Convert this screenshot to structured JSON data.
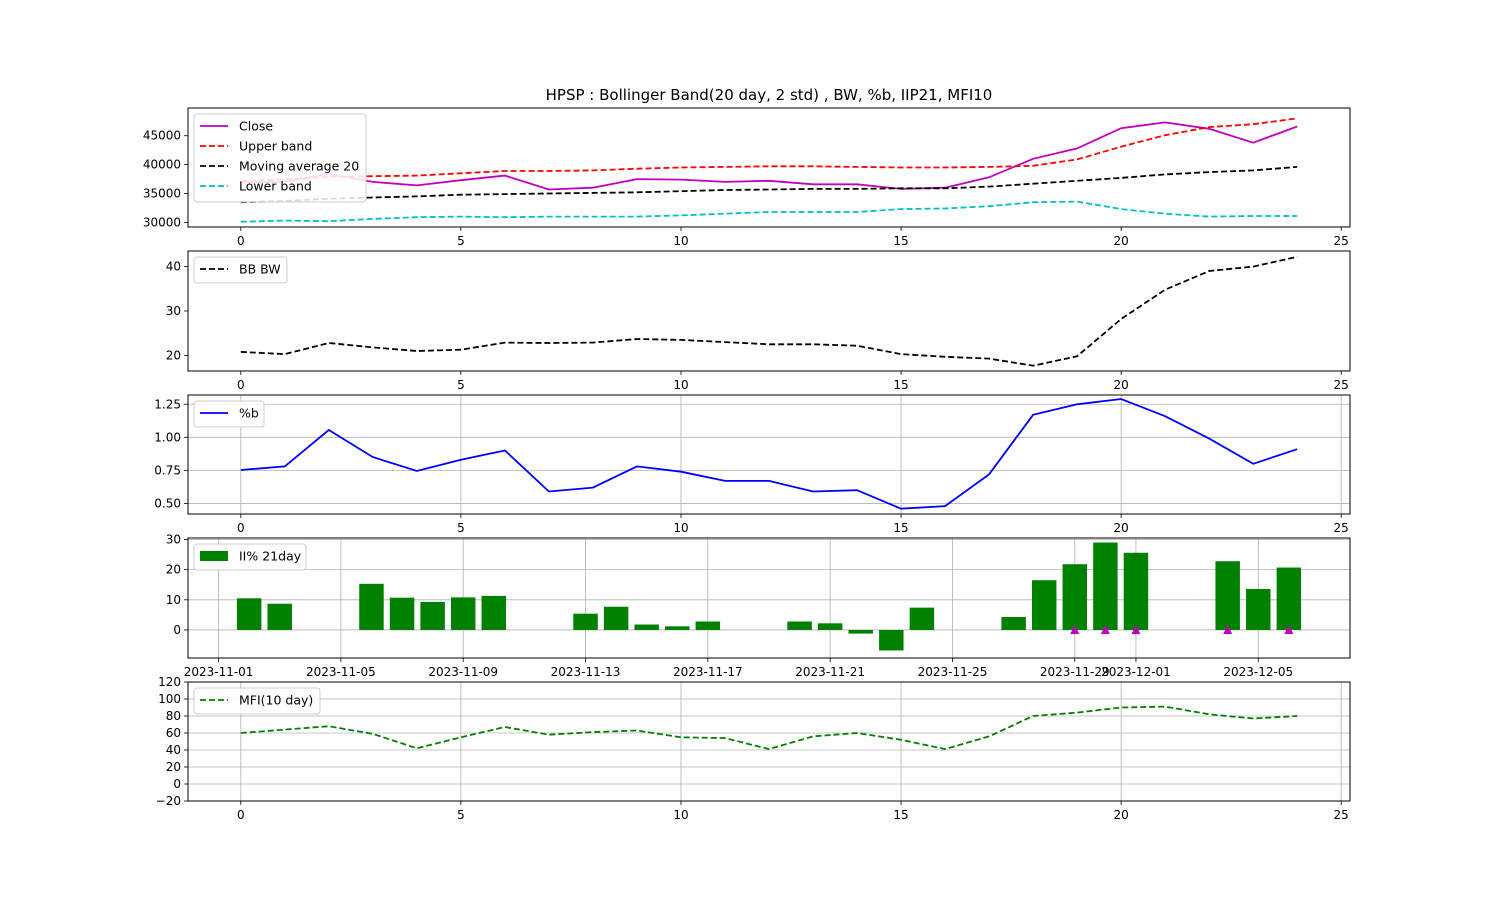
{
  "title": "HPSP : Bollinger Band(20 day, 2 std) , BW, %b, IIP21, MFI10",
  "chart_data": [
    {
      "type": "line",
      "panel": "bollinger",
      "x": [
        0,
        1,
        2,
        3,
        4,
        5,
        6,
        7,
        8,
        9,
        10,
        11,
        12,
        13,
        14,
        15,
        16,
        17,
        18,
        19,
        20,
        21,
        22,
        23,
        24
      ],
      "series": [
        {
          "name": "Close",
          "color": "#bf00bf",
          "style": "solid",
          "values": [
            36900,
            37000,
            38400,
            37000,
            36400,
            37300,
            38100,
            35700,
            36000,
            37500,
            37400,
            37000,
            37200,
            36600,
            36600,
            35800,
            36000,
            37800,
            41000,
            42800,
            46300,
            47300,
            46200,
            43800,
            46600
          ]
        },
        {
          "name": "Upper band",
          "color": "#ff0000",
          "style": "dashed",
          "values": [
            37200,
            37400,
            37900,
            38000,
            38100,
            38500,
            38900,
            38900,
            39000,
            39300,
            39500,
            39600,
            39700,
            39700,
            39600,
            39500,
            39500,
            39600,
            39800,
            40900,
            43100,
            45100,
            46500,
            47000,
            48000
          ]
        },
        {
          "name": "Moving average 20",
          "color": "#000000",
          "style": "dashed",
          "values": [
            33500,
            33700,
            34100,
            34300,
            34500,
            34800,
            34900,
            35000,
            35100,
            35200,
            35400,
            35600,
            35700,
            35800,
            35800,
            35900,
            35900,
            36200,
            36700,
            37200,
            37700,
            38300,
            38700,
            39000,
            39600
          ]
        },
        {
          "name": "Lower band",
          "color": "#00bfbf",
          "style": "dashed",
          "values": [
            30100,
            30300,
            30200,
            30600,
            30900,
            31000,
            30900,
            31000,
            31000,
            31000,
            31200,
            31500,
            31800,
            31800,
            31800,
            32300,
            32400,
            32800,
            33500,
            33600,
            32300,
            31500,
            31000,
            31100,
            31100
          ]
        }
      ],
      "yticks": [
        30000,
        35000,
        40000,
        45000
      ],
      "xticks": [
        0,
        5,
        10,
        15,
        20,
        25
      ],
      "ylim": [
        29200,
        49800
      ],
      "xlim": [
        -1.2,
        25.2
      ],
      "grid": false,
      "legend": "upper left"
    },
    {
      "type": "line",
      "panel": "bandwidth",
      "x": [
        0,
        1,
        2,
        3,
        4,
        5,
        6,
        7,
        8,
        9,
        10,
        11,
        12,
        13,
        14,
        15,
        16,
        17,
        18,
        19,
        20,
        21,
        22,
        23,
        24
      ],
      "series": [
        {
          "name": "BB BW",
          "color": "#000000",
          "style": "dashed",
          "values": [
            20.8,
            20.3,
            22.8,
            21.8,
            21.0,
            21.3,
            22.9,
            22.8,
            22.9,
            23.7,
            23.5,
            23.0,
            22.5,
            22.5,
            22.2,
            20.3,
            19.7,
            19.3,
            17.7,
            19.8,
            28.2,
            34.8,
            39.0,
            40.0,
            42.2
          ]
        }
      ],
      "yticks": [
        20,
        30,
        40
      ],
      "xticks": [
        0,
        5,
        10,
        15,
        20,
        25
      ],
      "ylim": [
        16.5,
        43.5
      ],
      "xlim": [
        -1.2,
        25.2
      ],
      "grid": false,
      "legend": "upper left"
    },
    {
      "type": "line",
      "panel": "percent_b",
      "x": [
        0,
        1,
        2,
        3,
        4,
        5,
        6,
        7,
        8,
        9,
        10,
        11,
        12,
        13,
        14,
        15,
        16,
        17,
        18,
        19,
        20,
        21,
        22,
        23,
        24
      ],
      "series": [
        {
          "name": "%b",
          "color": "#0000ff",
          "style": "solid",
          "values": [
            0.753,
            0.78,
            1.055,
            0.85,
            0.745,
            0.83,
            0.9,
            0.59,
            0.62,
            0.78,
            0.74,
            0.67,
            0.67,
            0.59,
            0.6,
            0.46,
            0.48,
            0.72,
            1.17,
            1.25,
            1.29,
            1.16,
            0.99,
            0.8,
            0.91
          ]
        }
      ],
      "yticks": [
        "0.50",
        "0.75",
        "1.00",
        "1.25"
      ],
      "xticks": [
        0,
        5,
        10,
        15,
        20,
        25
      ],
      "ylim": [
        0.42,
        1.32
      ],
      "xlim": [
        -1.2,
        25.2
      ],
      "grid": true,
      "legend": "upper left"
    },
    {
      "type": "bar",
      "panel": "ii21",
      "series": [
        {
          "name": "II% 21day",
          "color": "#008000",
          "points": [
            [
              "2023-11-02",
              10.5
            ],
            [
              "2023-11-03",
              8.7
            ],
            [
              "2023-11-06",
              15.3
            ],
            [
              "2023-11-07",
              10.7
            ],
            [
              "2023-11-08",
              9.3
            ],
            [
              "2023-11-09",
              10.8
            ],
            [
              "2023-11-10",
              11.3
            ],
            [
              "2023-11-13",
              5.4
            ],
            [
              "2023-11-14",
              7.7
            ],
            [
              "2023-11-15",
              1.8
            ],
            [
              "2023-11-16",
              1.2
            ],
            [
              "2023-11-17",
              2.8
            ],
            [
              "2023-11-20",
              2.8
            ],
            [
              "2023-11-21",
              2.2
            ],
            [
              "2023-11-22",
              -1.2
            ],
            [
              "2023-11-23",
              -6.8
            ],
            [
              "2023-11-24",
              7.4
            ],
            [
              "2023-11-27",
              4.3
            ],
            [
              "2023-11-28",
              16.5
            ],
            [
              "2023-11-29",
              21.8
            ],
            [
              "2023-11-30",
              29.0
            ],
            [
              "2023-12-01",
              25.6
            ],
            [
              "2023-12-04",
              22.8
            ],
            [
              "2023-12-05",
              13.6
            ],
            [
              "2023-12-06",
              20.7
            ]
          ]
        },
        {
          "name": "marker",
          "color": "#bf00bf",
          "points": [
            [
              "2023-11-29",
              0
            ],
            [
              "2023-11-30",
              0
            ],
            [
              "2023-12-01",
              0
            ],
            [
              "2023-12-04",
              0
            ],
            [
              "2023-12-06",
              0
            ]
          ]
        }
      ],
      "xticks": [
        "2023-11-01",
        "2023-11-05",
        "2023-11-09",
        "2023-11-13",
        "2023-11-17",
        "2023-11-21",
        "2023-11-25",
        "2023-11-29",
        "2023-12-01",
        "2023-12-05"
      ],
      "yticks": [
        0,
        10,
        20,
        30
      ],
      "xlim": [
        "2023-10-31",
        "2023-12-08"
      ],
      "ylim": [
        -9.3,
        30.5
      ],
      "grid": true,
      "legend": "upper left"
    },
    {
      "type": "line",
      "panel": "mfi",
      "x": [
        0,
        1,
        2,
        3,
        4,
        5,
        6,
        7,
        8,
        9,
        10,
        11,
        12,
        13,
        14,
        15,
        16,
        17,
        18,
        19,
        20,
        21,
        22,
        23,
        24
      ],
      "series": [
        {
          "name": "MFI(10 day)",
          "color": "#008000",
          "style": "dashed",
          "values": [
            60,
            64,
            68,
            59,
            42,
            55,
            67,
            58,
            61,
            63,
            55,
            54,
            41,
            56,
            60,
            52,
            41,
            56,
            80,
            84,
            90,
            91,
            82,
            77,
            80
          ]
        }
      ],
      "yticks": [
        "−20",
        "0",
        "20",
        "40",
        "60",
        "80",
        "100",
        "120"
      ],
      "xticks": [
        0,
        5,
        10,
        15,
        20,
        25
      ],
      "ylim": [
        -20,
        120
      ],
      "xlim": [
        -1.2,
        25.2
      ],
      "grid": true,
      "legend": "upper left"
    }
  ]
}
